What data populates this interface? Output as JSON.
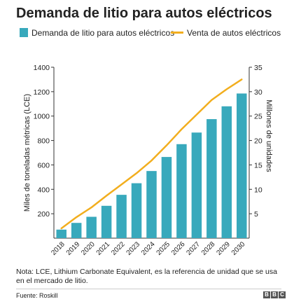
{
  "title": "Demanda de litio para autos eléctricos",
  "legend": {
    "bar_label": "Demanda de litio para autos eléctricos",
    "line_label": "Venta de autos eléctricos"
  },
  "colors": {
    "bar": "#38a9bc",
    "line": "#f2ae1e",
    "axis": "#333333"
  },
  "note": "Nota: LCE, Lithium Carbonate Equivalent, es la referencia de unidad que se usa en el mercado de litio.",
  "source": "Fuente: Roskill",
  "logo": {
    "name": "bbc-logo",
    "letters": [
      "B",
      "B",
      "C"
    ]
  },
  "chart_data": {
    "type": "bar",
    "title": "Demanda de litio para autos eléctricos",
    "categories": [
      "2018",
      "2019",
      "2020",
      "2021",
      "2022",
      "2023",
      "2024",
      "2025",
      "2026",
      "2027",
      "2028",
      "2029",
      "2030"
    ],
    "series": [
      {
        "name": "Demanda de litio para autos eléctricos",
        "type": "bar",
        "axis": "left",
        "values": [
          70,
          125,
          175,
          265,
          355,
          450,
          550,
          665,
          770,
          865,
          975,
          1080,
          1185
        ]
      },
      {
        "name": "Venta de autos eléctricos",
        "type": "line",
        "axis": "right",
        "values": [
          2.0,
          4.3,
          6.3,
          8.7,
          11.0,
          13.3,
          15.9,
          19.0,
          22.3,
          25.3,
          28.3,
          30.5,
          32.5
        ]
      }
    ],
    "ylabel_left": "Miles de toneladas métricas (LCE)",
    "ylabel_right": "Millones de unidades",
    "ylim_left": [
      0,
      1400
    ],
    "ylim_right": [
      0,
      35
    ],
    "yticks_left": [
      200,
      400,
      600,
      800,
      1000,
      1200,
      1400
    ],
    "yticks_right": [
      5,
      10,
      15,
      20,
      25,
      30,
      35
    ],
    "grid": false,
    "legend_position": "top"
  }
}
